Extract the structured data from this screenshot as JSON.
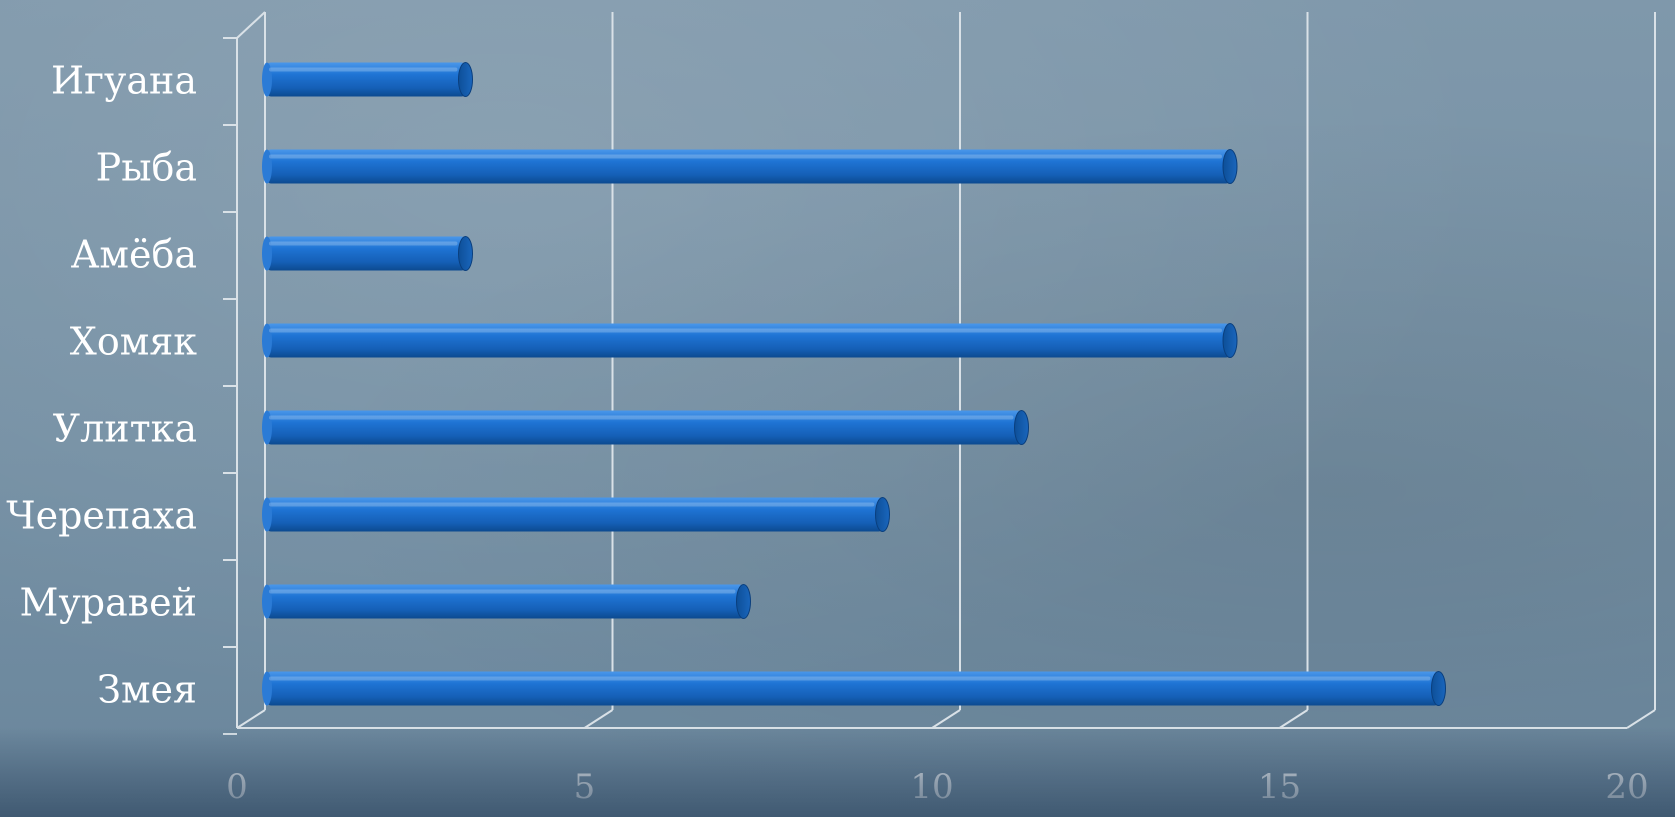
{
  "chart_data": {
    "type": "bar",
    "orientation": "horizontal",
    "categories": [
      "Змея",
      "Муравей",
      "Черепаха",
      "Улитка",
      "Хомяк",
      "Амёба",
      "Рыба",
      "Игуана"
    ],
    "values": [
      17,
      7,
      9,
      11,
      14,
      3,
      14,
      3
    ],
    "xlim": [
      0,
      20
    ],
    "xticks": [
      "0",
      "5",
      "10",
      "15",
      "20"
    ],
    "title": "",
    "xlabel": "",
    "ylabel": "",
    "grid": true,
    "legend": false,
    "colors": {
      "bar": "#1a6fd0",
      "bar_dark": "#0b4a94",
      "bar_light": "#3f8fe6",
      "grid": "#d9e1e7",
      "text": "#ffffff"
    }
  }
}
